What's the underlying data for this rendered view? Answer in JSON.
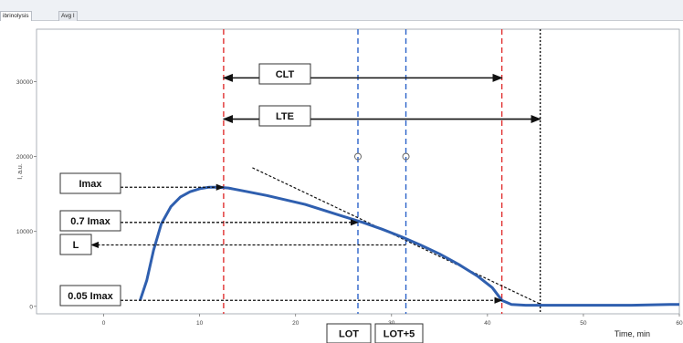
{
  "tabs": [
    {
      "label": "ibrinolysis",
      "active": true
    },
    {
      "label": "Avg I",
      "active": false
    }
  ],
  "chart_data": {
    "type": "line",
    "title": "",
    "xlabel": "Time, min",
    "ylabel": "I, a.u.",
    "xlim": [
      -7,
      60
    ],
    "ylim": [
      -1000,
      37000
    ],
    "xticks": [
      0,
      10,
      20,
      30,
      40,
      50,
      60
    ],
    "yticks": [
      0,
      10000,
      20000,
      30000
    ],
    "grid": false,
    "series": [
      {
        "color": "#2f5faf",
        "x": [
          3.8,
          4.5,
          5.2,
          6.0,
          7.0,
          8.0,
          9.0,
          10.0,
          11.0,
          12.0,
          13.0,
          15.0,
          17.0,
          19.0,
          21.0,
          23.0,
          25.0,
          27.0,
          29.0,
          31.0,
          33.0,
          35.0,
          37.0,
          39.0,
          40.5,
          41.5,
          42.5,
          44.0,
          46.0,
          50.0,
          55.0,
          59.0,
          60.0
        ],
        "y": [
          800,
          3500,
          7500,
          11000,
          13300,
          14600,
          15300,
          15700,
          15900,
          15900,
          15800,
          15300,
          14800,
          14200,
          13600,
          12800,
          12000,
          11200,
          10300,
          9300,
          8200,
          7000,
          5600,
          4000,
          2500,
          800,
          250,
          150,
          150,
          150,
          150,
          250,
          250
        ]
      }
    ],
    "vlines": [
      {
        "x": 12.5,
        "color": "#e03030",
        "style": "dash"
      },
      {
        "x": 26.5,
        "color": "#2a62c9",
        "style": "dash"
      },
      {
        "x": 31.5,
        "color": "#2a62c9",
        "style": "dash"
      },
      {
        "x": 41.5,
        "color": "#e03030",
        "style": "dash"
      },
      {
        "x": 45.5,
        "color": "#111111",
        "style": "dot"
      }
    ],
    "markers": [
      {
        "x": 26.5,
        "y": 20000
      },
      {
        "x": 31.5,
        "y": 20000
      }
    ],
    "tangent": {
      "x": [
        15.5,
        45.5
      ],
      "y": [
        18500,
        300
      ]
    },
    "annotations": {
      "clt_label": "CLT",
      "lte_label": "LTE",
      "imax_label": "Imax",
      "imax07_label": "0.7 Imax",
      "l_label": "L",
      "imax005_label": "0.05 Imax",
      "lot_label": "LOT",
      "lot5_label": "LOT+5"
    },
    "h_arrows": [
      {
        "name": "clt",
        "x1": 12.5,
        "x2": 41.5,
        "y": 30500
      },
      {
        "name": "lte",
        "x1": 12.5,
        "x2": 45.5,
        "y": 25000
      }
    ],
    "level_arrows": [
      {
        "name": "imax",
        "y": 15900,
        "to_x": 12.5
      },
      {
        "name": "imax07",
        "y": 11200,
        "to_x": 26.5
      },
      {
        "name": "l",
        "y": 8200
      },
      {
        "name": "imax005",
        "y": 800,
        "to_x": 41.5
      }
    ]
  }
}
